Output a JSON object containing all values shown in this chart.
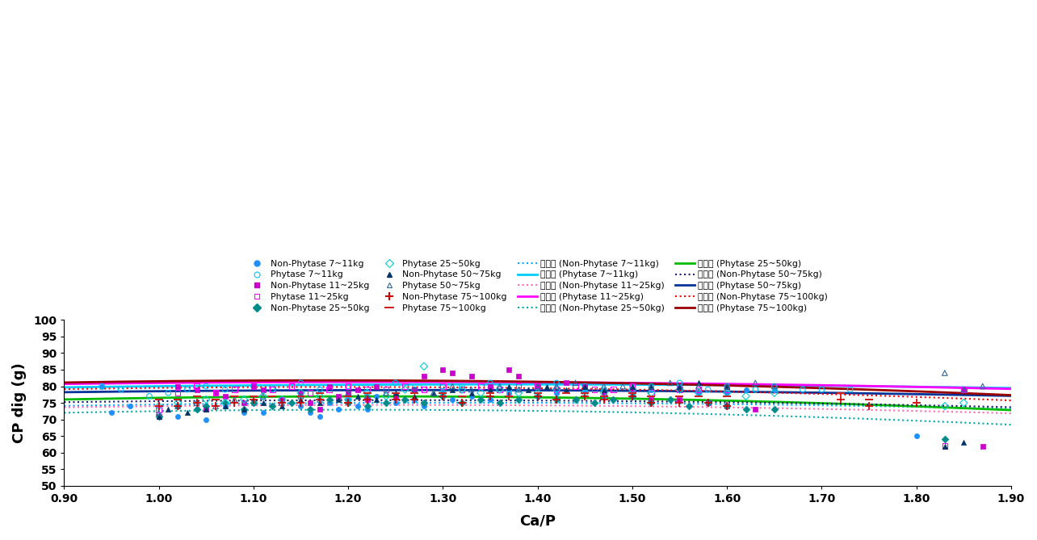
{
  "xlabel": "Ca/P",
  "ylabel": "CP dig (g)",
  "xlim": [
    0.9,
    1.9
  ],
  "ylim": [
    50,
    100
  ],
  "xticks": [
    0.9,
    1.0,
    1.1,
    1.2,
    1.3,
    1.4,
    1.5,
    1.6,
    1.7,
    1.8,
    1.9
  ],
  "yticks": [
    50,
    55,
    60,
    65,
    70,
    75,
    80,
    85,
    90,
    95,
    100
  ],
  "scat_colors": {
    "np_7_11": "#1E90FF",
    "p_7_11": "#00BFFF",
    "np_11_25": "#CC00CC",
    "p_11_25": "#FF00FF",
    "np_25_50": "#008B8B",
    "p_25_50": "#00CED1",
    "np_50_75": "#003366",
    "p_50_75": "#2F6699",
    "np_75_100": "#CC0000",
    "p_75_100": "#CC2222"
  },
  "curve_colors": {
    "np_7_11": "#00AAFF",
    "p_7_11": "#00CCFF",
    "np_11_25": "#FF69B4",
    "p_11_25": "#FF00FF",
    "np_25_50": "#00AAAA",
    "p_25_50": "#00BB00",
    "np_50_75": "#1A1A6E",
    "p_50_75": "#003399",
    "np_75_100": "#FF0000",
    "p_75_100": "#990000"
  },
  "poly_coeffs": {
    "np_7_11": [
      -5.5,
      14.5,
      65.5
    ],
    "p_7_11": [
      -4.0,
      11.0,
      73.0
    ],
    "np_11_25": [
      -6.0,
      15.0,
      65.0
    ],
    "p_11_25": [
      -5.0,
      12.5,
      73.5
    ],
    "np_25_50": [
      -9.5,
      23.0,
      59.0
    ],
    "p_25_50": [
      -9.0,
      22.0,
      63.5
    ],
    "np_50_75": [
      -5.0,
      12.5,
      68.0
    ],
    "p_50_75": [
      -4.5,
      11.5,
      71.5
    ],
    "np_75_100": [
      -8.0,
      19.0,
      68.5
    ],
    "p_75_100": [
      -8.5,
      20.0,
      70.0
    ]
  },
  "scatter_data": {
    "np_7_11": {
      "x": [
        0.94,
        0.95,
        0.97,
        1.02,
        1.04,
        1.05,
        1.07,
        1.09,
        1.1,
        1.11,
        1.13,
        1.15,
        1.16,
        1.17,
        1.18,
        1.19,
        1.2,
        1.21,
        1.22,
        1.23,
        1.25,
        1.27,
        1.28,
        1.3,
        1.31,
        1.33,
        1.35,
        1.37,
        1.4,
        1.42,
        1.45,
        1.47,
        1.5,
        1.52,
        1.55,
        1.57,
        1.6,
        1.62,
        1.65,
        1.8
      ],
      "y": [
        80,
        72,
        74,
        71,
        73,
        70,
        74,
        72,
        75,
        72,
        76,
        74,
        72,
        71,
        75,
        73,
        76,
        74,
        73,
        77,
        75,
        76,
        74,
        78,
        76,
        77,
        76,
        78,
        77,
        78,
        79,
        77,
        78,
        79,
        80,
        78,
        78,
        79,
        79,
        65
      ]
    },
    "p_7_11": {
      "x": [
        0.94,
        0.96,
        0.99,
        1.01,
        1.03,
        1.05,
        1.07,
        1.1,
        1.12,
        1.15,
        1.17,
        1.2,
        1.22,
        1.25,
        1.27,
        1.3,
        1.32,
        1.35,
        1.37,
        1.4,
        1.42,
        1.45,
        1.47,
        1.5,
        1.52,
        1.55,
        1.58,
        1.6,
        1.63,
        1.65,
        1.68,
        1.7,
        1.73
      ],
      "y": [
        80,
        79,
        77,
        78,
        79,
        80,
        79,
        80,
        79,
        81,
        79,
        80,
        78,
        81,
        79,
        80,
        80,
        81,
        79,
        80,
        81,
        80,
        79,
        80,
        80,
        81,
        79,
        80,
        79,
        80,
        79,
        79,
        79
      ]
    },
    "np_11_25": {
      "x": [
        1.0,
        1.02,
        1.04,
        1.05,
        1.06,
        1.07,
        1.09,
        1.1,
        1.11,
        1.13,
        1.15,
        1.16,
        1.17,
        1.18,
        1.19,
        1.2,
        1.21,
        1.22,
        1.23,
        1.25,
        1.27,
        1.28,
        1.3,
        1.31,
        1.33,
        1.35,
        1.37,
        1.38,
        1.4,
        1.43,
        1.45,
        1.47,
        1.5,
        1.52,
        1.55,
        1.58,
        1.6,
        1.63,
        1.85,
        1.87
      ],
      "y": [
        71,
        80,
        79,
        73,
        78,
        77,
        75,
        80,
        79,
        76,
        78,
        75,
        73,
        80,
        77,
        78,
        79,
        76,
        80,
        77,
        79,
        83,
        85,
        84,
        83,
        80,
        85,
        83,
        80,
        81,
        80,
        78,
        79,
        76,
        76,
        75,
        74,
        73,
        79,
        62
      ]
    },
    "p_11_25": {
      "x": [
        1.0,
        1.02,
        1.04,
        1.06,
        1.08,
        1.1,
        1.12,
        1.14,
        1.16,
        1.18,
        1.2,
        1.22,
        1.24,
        1.26,
        1.28,
        1.3,
        1.32,
        1.34,
        1.36,
        1.38,
        1.4,
        1.42,
        1.44,
        1.46,
        1.48,
        1.5,
        1.52,
        1.55,
        1.57,
        1.6,
        1.83,
        1.85
      ],
      "y": [
        73,
        78,
        80,
        78,
        79,
        80,
        79,
        80,
        78,
        79,
        80,
        79,
        79,
        80,
        79,
        80,
        79,
        80,
        79,
        80,
        80,
        79,
        80,
        79,
        79,
        80,
        78,
        79,
        79,
        79,
        62,
        79
      ]
    },
    "np_25_50": {
      "x": [
        1.0,
        1.02,
        1.04,
        1.05,
        1.07,
        1.09,
        1.1,
        1.12,
        1.14,
        1.16,
        1.18,
        1.2,
        1.22,
        1.24,
        1.26,
        1.28,
        1.3,
        1.32,
        1.34,
        1.36,
        1.38,
        1.4,
        1.42,
        1.44,
        1.46,
        1.48,
        1.5,
        1.52,
        1.54,
        1.56,
        1.58,
        1.6,
        1.62,
        1.65,
        1.83
      ],
      "y": [
        71,
        74,
        73,
        74,
        75,
        73,
        75,
        74,
        75,
        73,
        76,
        75,
        74,
        75,
        76,
        75,
        77,
        75,
        76,
        75,
        76,
        77,
        76,
        76,
        75,
        76,
        77,
        75,
        76,
        74,
        75,
        74,
        73,
        73,
        64
      ]
    },
    "p_25_50": {
      "x": [
        1.0,
        1.02,
        1.05,
        1.07,
        1.09,
        1.11,
        1.13,
        1.15,
        1.17,
        1.2,
        1.22,
        1.24,
        1.26,
        1.28,
        1.3,
        1.32,
        1.34,
        1.36,
        1.38,
        1.4,
        1.42,
        1.45,
        1.47,
        1.5,
        1.52,
        1.55,
        1.57,
        1.6,
        1.62,
        1.65,
        1.83,
        1.85
      ],
      "y": [
        74,
        75,
        76,
        75,
        76,
        77,
        76,
        78,
        77,
        76,
        78,
        77,
        79,
        86,
        78,
        79,
        78,
        79,
        78,
        78,
        79,
        78,
        78,
        79,
        78,
        79,
        78,
        78,
        77,
        78,
        74,
        75
      ]
    },
    "np_50_75": {
      "x": [
        1.0,
        1.01,
        1.03,
        1.05,
        1.07,
        1.09,
        1.11,
        1.13,
        1.15,
        1.17,
        1.19,
        1.21,
        1.23,
        1.25,
        1.27,
        1.29,
        1.31,
        1.33,
        1.35,
        1.37,
        1.39,
        1.41,
        1.43,
        1.45,
        1.47,
        1.5,
        1.52,
        1.55,
        1.57,
        1.6,
        1.83,
        1.85
      ],
      "y": [
        71,
        73,
        72,
        73,
        74,
        73,
        75,
        74,
        76,
        75,
        76,
        77,
        76,
        78,
        77,
        78,
        79,
        78,
        79,
        80,
        79,
        80,
        79,
        80,
        79,
        80,
        80,
        80,
        81,
        80,
        62,
        63
      ]
    },
    "p_50_75": {
      "x": [
        1.0,
        1.02,
        1.04,
        1.06,
        1.08,
        1.11,
        1.13,
        1.15,
        1.17,
        1.2,
        1.22,
        1.24,
        1.27,
        1.29,
        1.31,
        1.33,
        1.36,
        1.38,
        1.4,
        1.42,
        1.44,
        1.47,
        1.49,
        1.52,
        1.54,
        1.57,
        1.6,
        1.63,
        1.65,
        1.83,
        1.85,
        1.87
      ],
      "y": [
        72,
        74,
        75,
        74,
        76,
        77,
        75,
        77,
        76,
        78,
        77,
        78,
        79,
        78,
        80,
        79,
        80,
        79,
        80,
        80,
        81,
        80,
        80,
        80,
        81,
        80,
        80,
        81,
        80,
        84,
        79,
        80
      ]
    },
    "np_75_100": {
      "x": [
        1.0,
        1.02,
        1.04,
        1.06,
        1.08,
        1.1,
        1.13,
        1.15,
        1.17,
        1.2,
        1.22,
        1.25,
        1.27,
        1.3,
        1.32,
        1.35,
        1.37,
        1.4,
        1.42,
        1.45,
        1.47,
        1.5,
        1.52,
        1.55,
        1.58,
        1.6,
        1.72,
        1.75,
        1.8
      ],
      "y": [
        74,
        74,
        75,
        74,
        75,
        76,
        75,
        75,
        76,
        75,
        76,
        76,
        76,
        77,
        75,
        77,
        77,
        77,
        76,
        77,
        76,
        77,
        75,
        75,
        75,
        74,
        76,
        74,
        75
      ]
    },
    "p_75_100": {
      "x": [
        1.0,
        1.02,
        1.04,
        1.06,
        1.08,
        1.1,
        1.12,
        1.15,
        1.17,
        1.2,
        1.22,
        1.25,
        1.27,
        1.3,
        1.32,
        1.35,
        1.37,
        1.4,
        1.43,
        1.45,
        1.47,
        1.5,
        1.52,
        1.55,
        1.57,
        1.6,
        1.72,
        1.75,
        1.8
      ],
      "y": [
        76,
        76,
        77,
        76,
        77,
        77,
        77,
        77,
        78,
        77,
        78,
        78,
        78,
        78,
        77,
        78,
        77,
        78,
        78,
        78,
        77,
        78,
        77,
        77,
        77,
        77,
        78,
        76,
        75
      ]
    }
  },
  "legend_rows": [
    [
      {
        "label": "Non-Phytase 7~11kg",
        "type": "scatter",
        "marker": "o",
        "filled": true,
        "key": "np_7_11"
      },
      {
        "label": "Phytase 7~11kg",
        "type": "scatter",
        "marker": "o",
        "filled": false,
        "key": "p_7_11"
      },
      {
        "label": "Non-Phytase 11~25kg",
        "type": "scatter",
        "marker": "s",
        "filled": true,
        "key": "np_11_25"
      },
      {
        "label": "Phytase 11~25kg",
        "type": "scatter",
        "marker": "s",
        "filled": false,
        "key": "p_11_25"
      }
    ],
    [
      {
        "label": "Non-Phytase 25~50kg",
        "type": "scatter",
        "marker": "D",
        "filled": true,
        "key": "np_25_50"
      },
      {
        "label": "Phytase 25~50kg",
        "type": "scatter",
        "marker": "D",
        "filled": false,
        "key": "p_25_50"
      },
      {
        "label": "Non-Phytase 50~75kg",
        "type": "scatter",
        "marker": "^",
        "filled": true,
        "key": "np_50_75"
      },
      {
        "label": "Phytase 50~75kg",
        "type": "scatter",
        "marker": "^",
        "filled": false,
        "key": "p_50_75"
      }
    ],
    [
      {
        "label": "Non-Phytase 75~100kg",
        "type": "scatter",
        "marker": "+",
        "filled": false,
        "key": "np_75_100"
      },
      {
        "label": "Phytase 75~100kg",
        "type": "scatter",
        "marker": "-",
        "filled": false,
        "key": "p_75_100"
      },
      {
        "label": "다항식 (Non-Phytase 7~11kg)",
        "type": "curve",
        "ls": "dotted",
        "key": "np_7_11"
      },
      {
        "label": "다항식 (Phytase 7~11kg)",
        "type": "curve",
        "ls": "solid",
        "key": "p_7_11"
      }
    ],
    [
      {
        "label": "다항식 (Non-Phytase 11~25kg)",
        "type": "curve",
        "ls": "dotted",
        "key": "np_11_25"
      },
      {
        "label": "다항식 (Phytase 11~25kg)",
        "type": "curve",
        "ls": "solid",
        "key": "p_11_25"
      },
      {
        "label": "다항식 (Non-Phytase 25~50kg)",
        "type": "curve",
        "ls": "dotted",
        "key": "np_25_50"
      },
      {
        "label": "다항식 (Phytase 25~50kg)",
        "type": "curve",
        "ls": "solid",
        "key": "p_25_50"
      }
    ],
    [
      {
        "label": "다항식 (Non-Phytase 50~75kg)",
        "type": "curve",
        "ls": "dotted",
        "key": "np_50_75"
      },
      {
        "label": "다항식 (Phytase 50~75kg)",
        "type": "curve",
        "ls": "solid",
        "key": "p_50_75"
      },
      {
        "label": "다항식 (Non-Phytase 75~100kg)",
        "type": "curve",
        "ls": "dotted",
        "key": "np_75_100"
      },
      {
        "label": "다항식 (Phytase 75~100kg)",
        "type": "curve",
        "ls": "solid",
        "key": "p_75_100"
      }
    ]
  ]
}
